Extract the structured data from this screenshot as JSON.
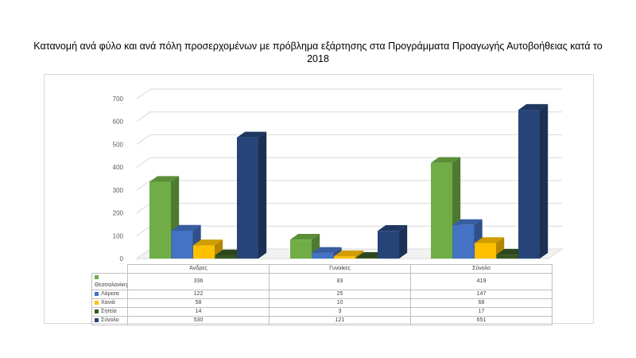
{
  "chart_data": {
    "type": "bar",
    "title": "Κατανομή ανά φύλο και ανά πόλη προσερχομένων με πρόβλημα εξάρτησης στα Προγράμματα Προαγωγής Αυτοβοήθειας κατά το 2018",
    "categories": [
      "Άνδρες",
      "Γυναίκες",
      "Σύνολο"
    ],
    "series": [
      {
        "name": "Θεσσαλονίκη",
        "values": [
          336,
          83,
          419
        ],
        "color": "#70ad47"
      },
      {
        "name": "Λάρισα",
        "values": [
          122,
          25,
          147
        ],
        "color": "#4472c4"
      },
      {
        "name": "Χανιά",
        "values": [
          58,
          10,
          68
        ],
        "color": "#ffc000"
      },
      {
        "name": "Σητεία",
        "values": [
          14,
          3,
          17
        ],
        "color": "#375623"
      },
      {
        "name": "Σύνολο",
        "values": [
          530,
          121,
          651
        ],
        "color": "#264478"
      }
    ],
    "ylim": [
      0,
      700
    ],
    "yticks": [
      "0",
      "100",
      "200",
      "300",
      "400",
      "500",
      "600",
      "700"
    ],
    "grid": true,
    "legend": "data-table"
  }
}
